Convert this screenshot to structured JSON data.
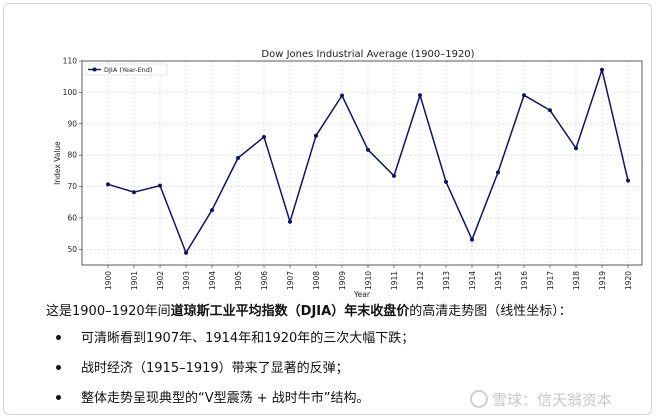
{
  "chart_data": {
    "type": "line",
    "title": "Dow Jones Industrial Average (1900–1920)",
    "xlabel": "Year",
    "ylabel": "Index Value",
    "categories": [
      "1900",
      "1901",
      "1902",
      "1903",
      "1904",
      "1905",
      "1906",
      "1907",
      "1908",
      "1909",
      "1910",
      "1911",
      "1912",
      "1913",
      "1914",
      "1915",
      "1916",
      "1917",
      "1918",
      "1919",
      "1920"
    ],
    "series": [
      {
        "name": "DJIA (Year-End)",
        "color": "#0d1270",
        "values": [
          70.7,
          68.2,
          70.3,
          48.9,
          62.5,
          79.1,
          85.8,
          58.8,
          86.2,
          99.0,
          81.7,
          73.4,
          99.1,
          71.5,
          53.1,
          74.5,
          99.1,
          94.3,
          82.2,
          107.2,
          71.9
        ]
      }
    ],
    "ylim": [
      45,
      110
    ],
    "yticks": [
      "50",
      "60",
      "70",
      "80",
      "90",
      "100",
      "110"
    ],
    "grid": true,
    "legend": "top-left"
  },
  "article": {
    "intro_pre": "这是1900–1920年间",
    "intro_bold": "道琼斯工业平均指数（DJIA）年末收盘价",
    "intro_post": "的高清走势图（线性坐标）：",
    "bullets": [
      "可清晰看到1907年、1914年和1920年的三次大幅下跌；",
      "战时经济（1915–1919）带来了显著的反弹；",
      "整体走势呈现典型的“V型震荡 + 战时牛市”结构。"
    ]
  },
  "watermark": "雪球：信天翁资本"
}
